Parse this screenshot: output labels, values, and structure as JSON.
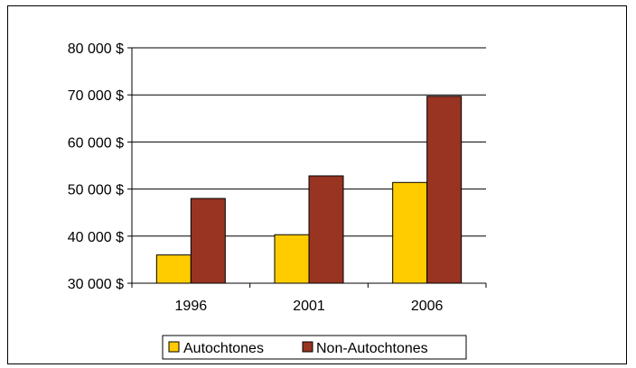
{
  "chart_data": {
    "type": "bar",
    "title": "",
    "xlabel": "",
    "ylabel": "",
    "categories": [
      "1996",
      "2001",
      "2006"
    ],
    "series": [
      {
        "name": "Autochtones",
        "color": "#FFCC00",
        "values": [
          36000,
          40300,
          51400
        ]
      },
      {
        "name": "Non-Autochtones",
        "color": "#993322",
        "values": [
          48000,
          52800,
          69700
        ]
      }
    ],
    "ylim": [
      30000,
      80000
    ],
    "yticks": [
      30000,
      40000,
      50000,
      60000,
      70000,
      80000
    ],
    "ytick_labels": [
      "30 000 $",
      "40 000 $",
      "50 000 $",
      "60 000 $",
      "70 000 $",
      "80 000 $"
    ],
    "grid": true,
    "legend_position": "bottom"
  }
}
